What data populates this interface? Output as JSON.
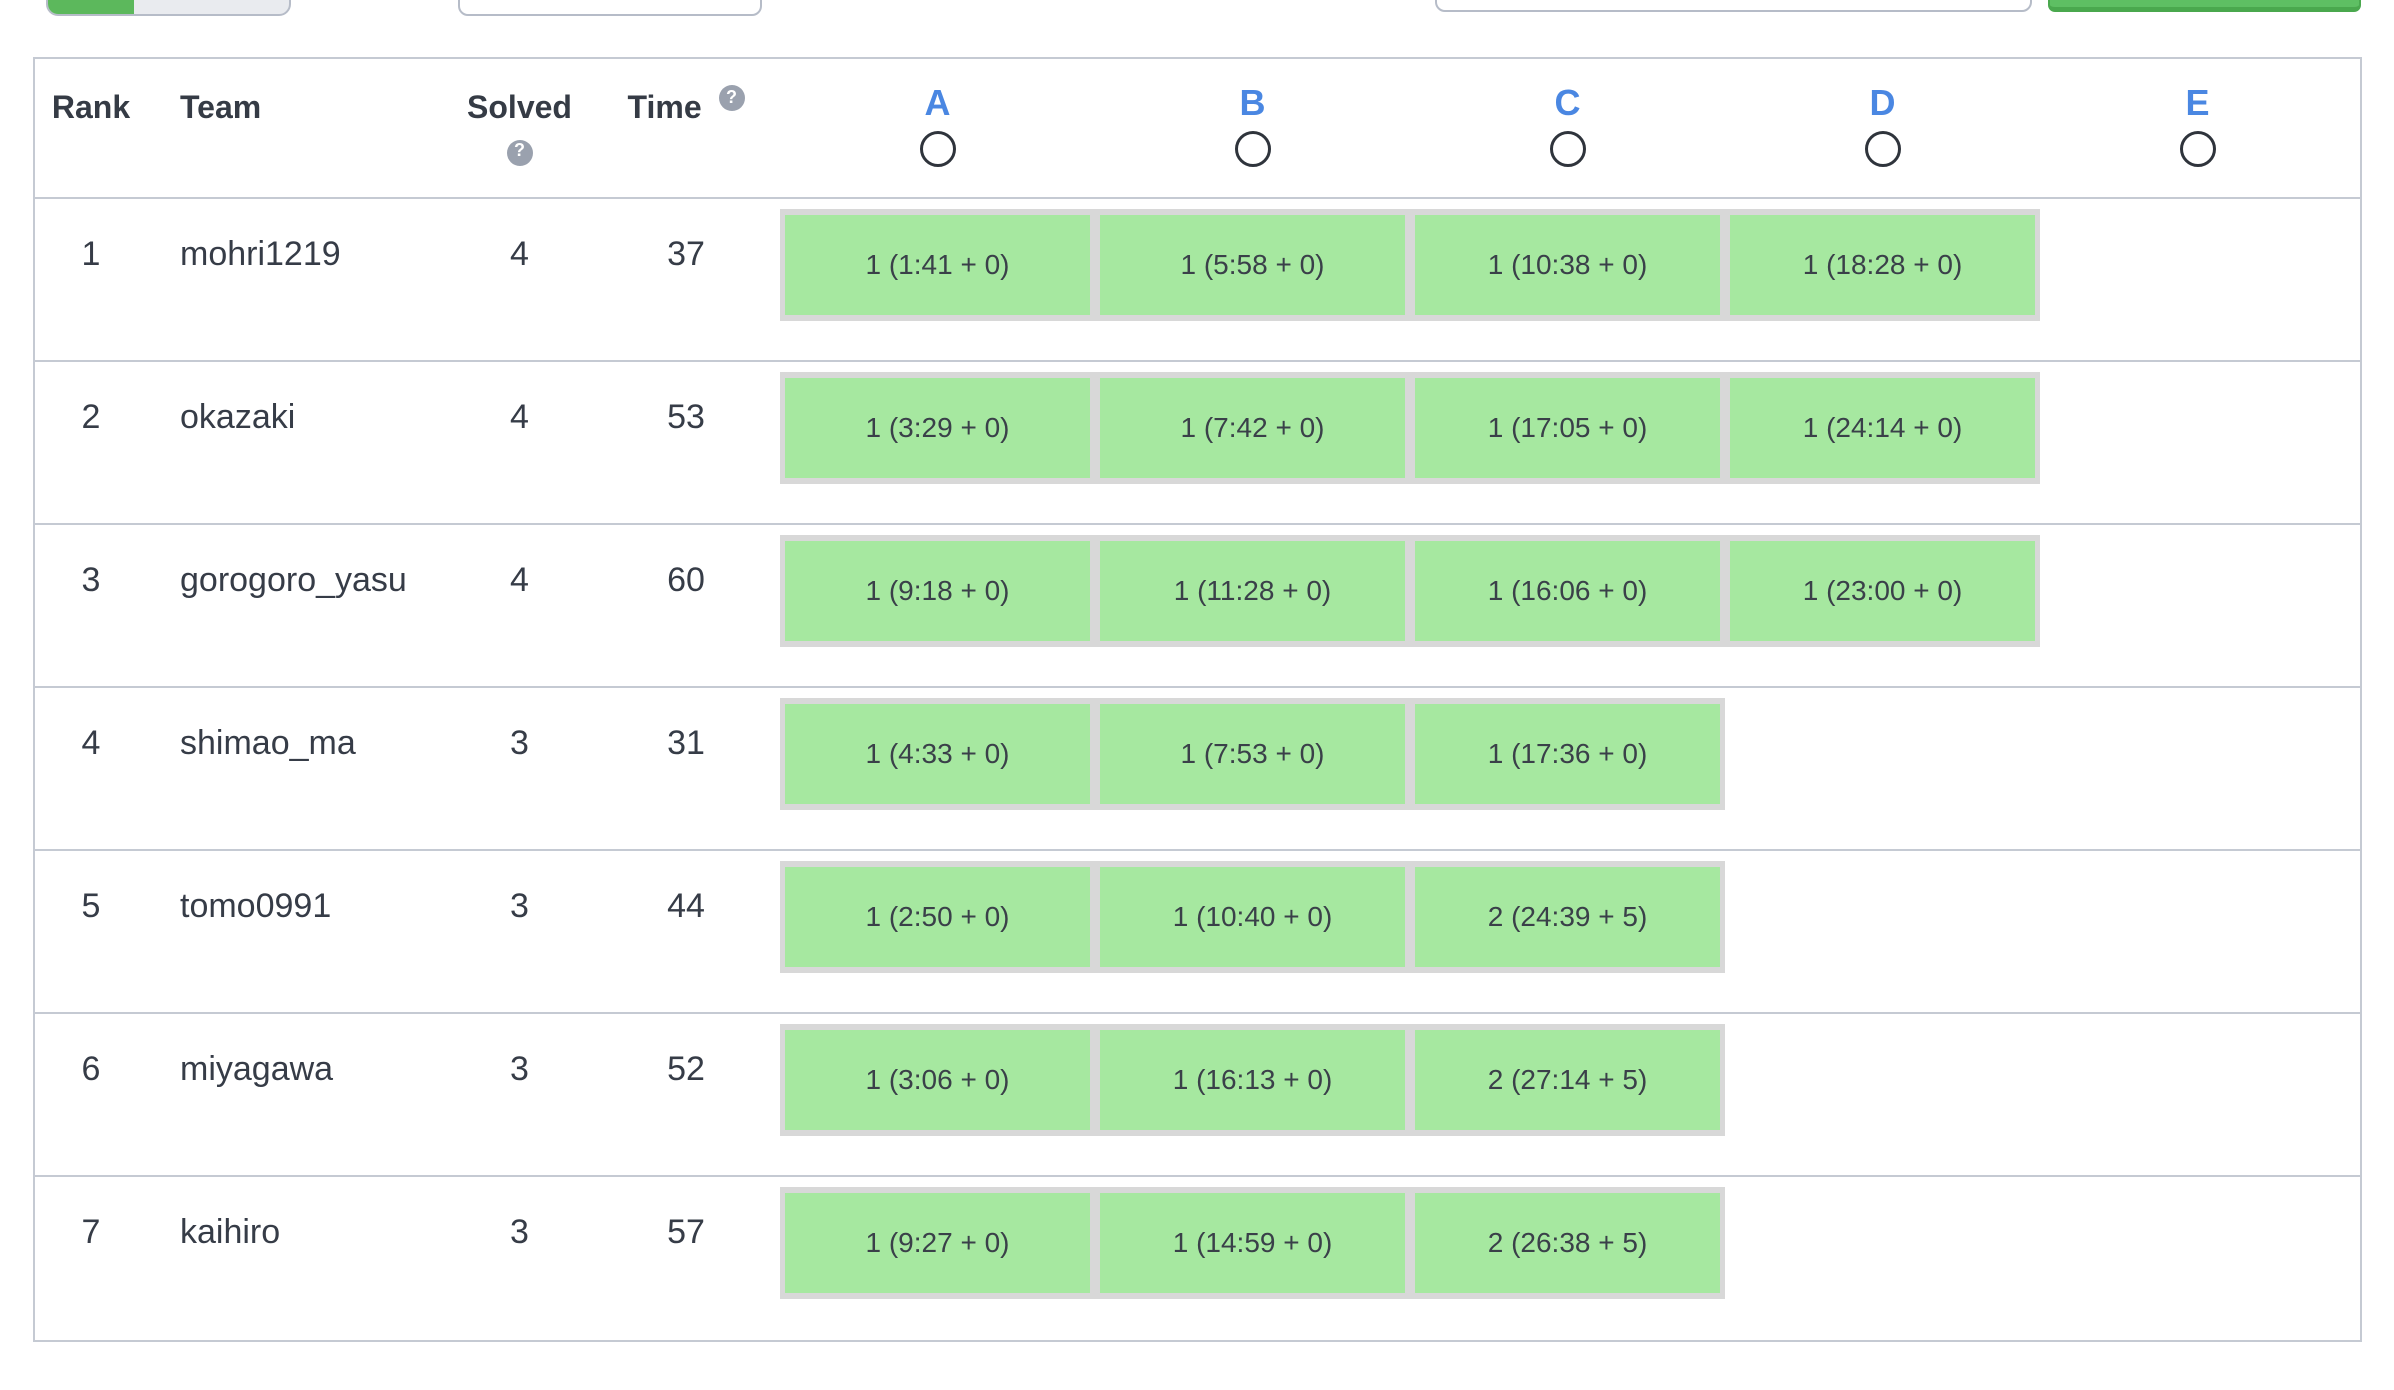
{
  "colors": {
    "accent_green": "#5cb85c",
    "accepted_cell_green": "#a6e8a0",
    "cell_border_gray": "#d8d8d8",
    "table_border": "#c5cad3",
    "problem_link_blue": "#4a87e2",
    "help_badge_gray": "#9aa1ae"
  },
  "topbar": {
    "search_value": "",
    "search_placeholder": ""
  },
  "table": {
    "header": {
      "rank": "Rank",
      "team": "Team",
      "solved": "Solved",
      "time": "Time",
      "help": "?",
      "problems": [
        "A",
        "B",
        "C",
        "D",
        "E"
      ]
    },
    "rows": [
      {
        "rank": "1",
        "team": "mohri1219",
        "solved": "4",
        "time": "37",
        "results": [
          "1 (1:41 + 0)",
          "1 (5:58 + 0)",
          "1 (10:38 + 0)",
          "1 (18:28 + 0)",
          null
        ]
      },
      {
        "rank": "2",
        "team": "okazaki",
        "solved": "4",
        "time": "53",
        "results": [
          "1 (3:29 + 0)",
          "1 (7:42 + 0)",
          "1 (17:05 + 0)",
          "1 (24:14 + 0)",
          null
        ]
      },
      {
        "rank": "3",
        "team": "gorogoro_yasu",
        "solved": "4",
        "time": "60",
        "results": [
          "1 (9:18 + 0)",
          "1 (11:28 + 0)",
          "1 (16:06 + 0)",
          "1 (23:00 + 0)",
          null
        ]
      },
      {
        "rank": "4",
        "team": "shimao_ma",
        "solved": "3",
        "time": "31",
        "results": [
          "1 (4:33 + 0)",
          "1 (7:53 + 0)",
          "1 (17:36 + 0)",
          null,
          null
        ]
      },
      {
        "rank": "5",
        "team": "tomo0991",
        "solved": "3",
        "time": "44",
        "results": [
          "1 (2:50 + 0)",
          "1 (10:40 + 0)",
          "2 (24:39 + 5)",
          null,
          null
        ]
      },
      {
        "rank": "6",
        "team": "miyagawa",
        "solved": "3",
        "time": "52",
        "results": [
          "1 (3:06 + 0)",
          "1 (16:13 + 0)",
          "2 (27:14 + 5)",
          null,
          null
        ]
      },
      {
        "rank": "7",
        "team": "kaihiro",
        "solved": "3",
        "time": "57",
        "results": [
          "1 (9:27 + 0)",
          "1 (14:59 + 0)",
          "2 (26:38 + 5)",
          null,
          null
        ]
      }
    ]
  }
}
